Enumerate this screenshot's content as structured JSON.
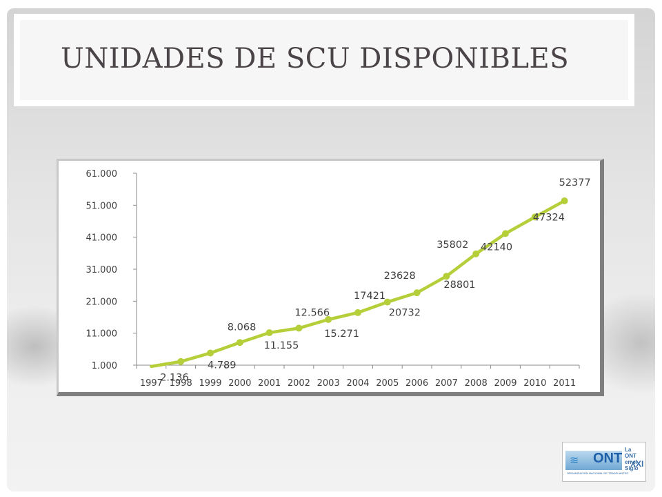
{
  "title": "UNIDADES DE SCU DISPONIBLES",
  "colors": {
    "line": "#b5cf3b",
    "marker": "#b5cf3b",
    "title": "#4a4448"
  },
  "logo": {
    "text": "ONT",
    "side": "La ONT en el Siglo",
    "suffix": "XXI",
    "subtitle": "ORGANIZACIÓN NACIONAL DE TRASPLANTES"
  },
  "chart_data": {
    "type": "line",
    "title": "",
    "xlabel": "",
    "ylabel": "",
    "categories": [
      "1997",
      "1998",
      "1999",
      "2000",
      "2001",
      "2002",
      "2003",
      "2004",
      "2005",
      "2006",
      "2007",
      "2008",
      "2009",
      "2010",
      "2011"
    ],
    "series": [
      {
        "values": [
          600,
          2136,
          4789,
          8068,
          11155,
          12566,
          15271,
          17421,
          20732,
          23628,
          28801,
          35802,
          42140,
          47324,
          52377
        ]
      }
    ],
    "data_labels": [
      {
        "index": 1,
        "text": "2.136"
      },
      {
        "index": 2,
        "text": "4.789"
      },
      {
        "index": 3,
        "text": "8.068"
      },
      {
        "index": 4,
        "text": "11.155"
      },
      {
        "index": 5,
        "text": "12.566"
      },
      {
        "index": 6,
        "text": "15.271"
      },
      {
        "index": 7,
        "text": "17421"
      },
      {
        "index": 8,
        "text": "20732"
      },
      {
        "index": 9,
        "text": "23628"
      },
      {
        "index": 10,
        "text": "28801"
      },
      {
        "index": 11,
        "text": "35802"
      },
      {
        "index": 12,
        "text": "42140"
      },
      {
        "index": 13,
        "text": "47324"
      },
      {
        "index": 14,
        "text": "52377"
      }
    ],
    "yticks": [
      "1.000",
      "11.000",
      "21.000",
      "31.000",
      "41.000",
      "51.000",
      "61.000"
    ],
    "ytick_values": [
      1000,
      11000,
      21000,
      31000,
      41000,
      51000,
      61000
    ],
    "ylim": [
      1000,
      61000
    ],
    "grid": false,
    "legend": "none"
  }
}
